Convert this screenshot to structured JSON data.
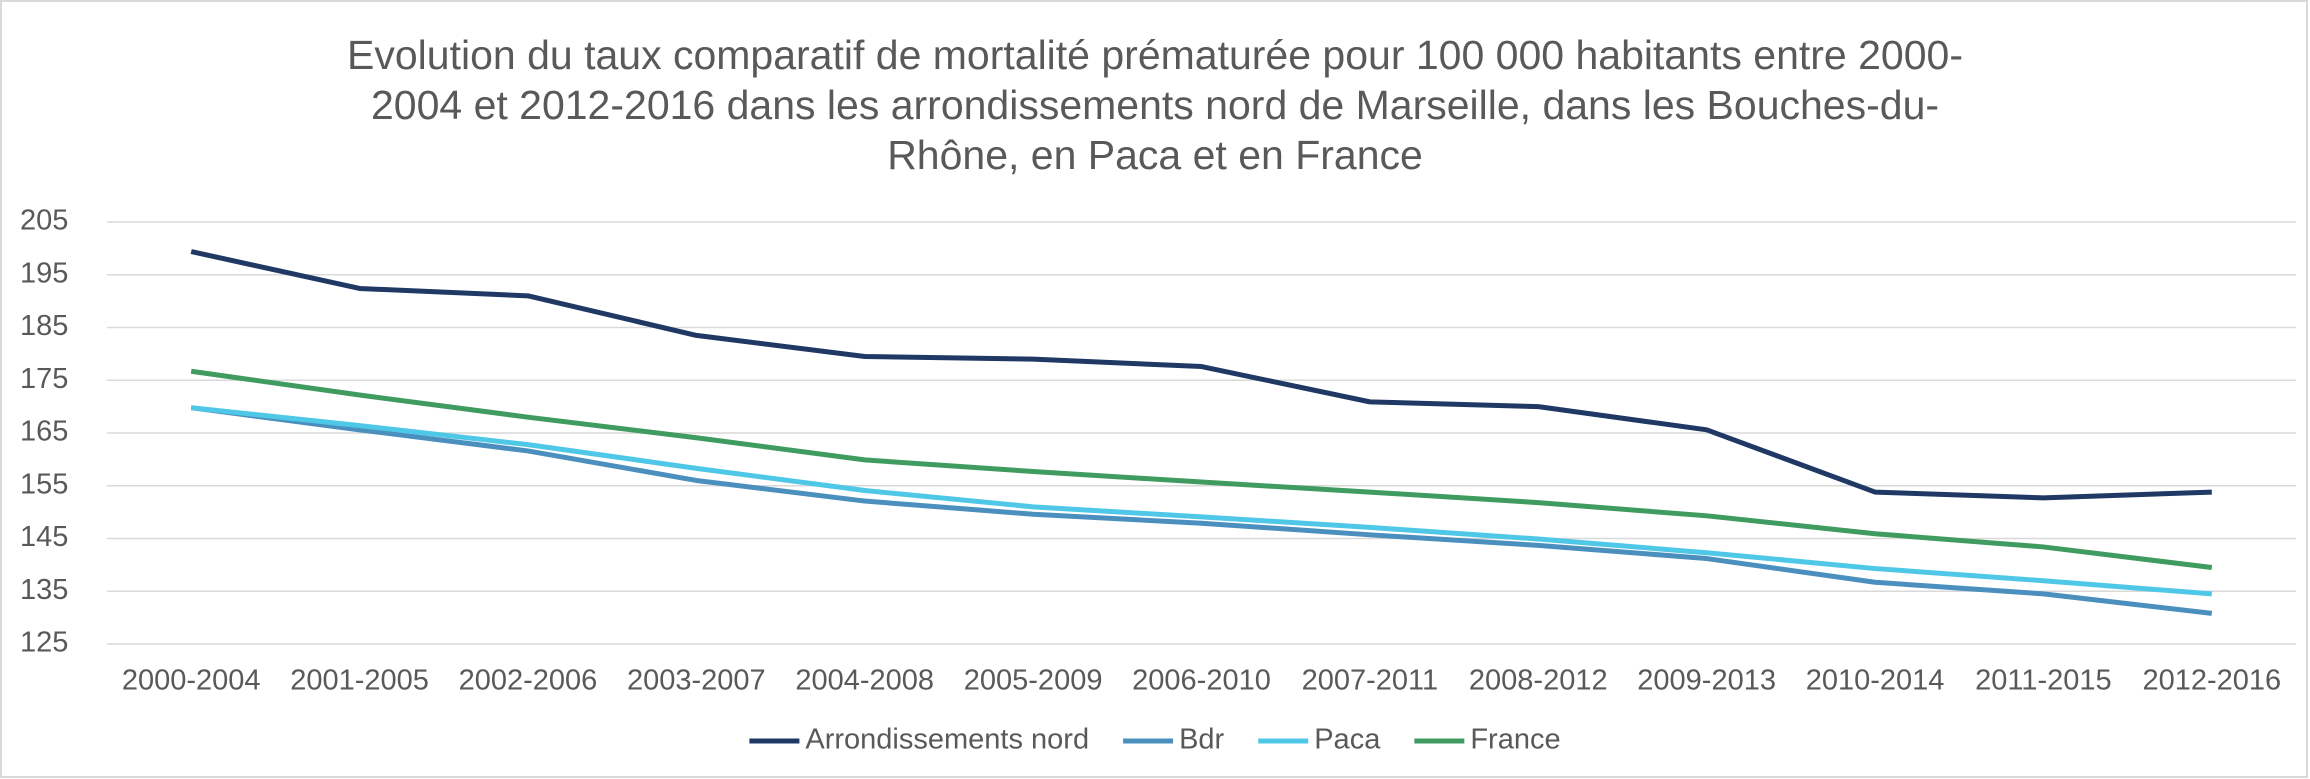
{
  "chart_data": {
    "type": "line",
    "title": "Evolution du taux comparatif de mortalité prématurée pour 100 000 habitants entre 2000-2004 et 2012-2016 dans les arrondissements nord de Marseille, dans les Bouches-du-Rhône, en Paca et en France",
    "categories": [
      "2000-2004",
      "2001-2005",
      "2002-2006",
      "2003-2007",
      "2004-2008",
      "2005-2009",
      "2006-2010",
      "2007-2011",
      "2008-2012",
      "2009-2013",
      "2010-2014",
      "2011-2015",
      "2012-2016"
    ],
    "series": [
      {
        "name": "Arrondissements nord",
        "color": "#1f3864",
        "values": [
          199.4,
          192.4,
          191.0,
          183.5,
          179.5,
          179.0,
          177.6,
          170.9,
          170.0,
          165.6,
          153.8,
          152.7,
          153.8
        ]
      },
      {
        "name": "Bdr",
        "color": "#4a8fbd",
        "values": [
          169.8,
          165.6,
          161.6,
          156.0,
          152.1,
          149.6,
          147.9,
          145.7,
          143.7,
          141.2,
          136.7,
          134.5,
          130.8
        ]
      },
      {
        "name": "Paca",
        "color": "#4fc8e8",
        "values": [
          169.8,
          166.4,
          162.8,
          158.3,
          154.1,
          151.0,
          149.1,
          147.1,
          144.9,
          142.3,
          139.3,
          137.0,
          134.5
        ]
      },
      {
        "name": "France",
        "color": "#3f9b5f",
        "values": [
          176.7,
          172.2,
          168.0,
          164.1,
          159.9,
          157.7,
          155.7,
          153.8,
          151.8,
          149.3,
          145.9,
          143.4,
          139.5
        ]
      }
    ],
    "ylim": [
      125,
      205
    ],
    "yticks": [
      125,
      135,
      145,
      155,
      165,
      175,
      185,
      195,
      205
    ],
    "grid": true,
    "legend": "bottom"
  }
}
